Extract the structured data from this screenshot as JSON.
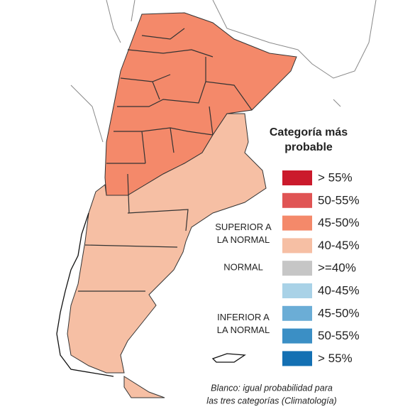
{
  "legend": {
    "title": [
      "Categoría más",
      "probable"
    ],
    "items": [
      {
        "label": "> 55%",
        "color": "#cb1a2c"
      },
      {
        "label": "50-55%",
        "color": "#e05454"
      },
      {
        "label": "45-50%",
        "color": "#f4896a"
      },
      {
        "label": "40-45%",
        "color": "#f6bfa4"
      },
      {
        "label": ">=40%",
        "color": "#c6c6c6"
      },
      {
        "label": "40-45%",
        "color": "#a9d2e7"
      },
      {
        "label": "45-50%",
        "color": "#6badd6"
      },
      {
        "label": "50-55%",
        "color": "#3b8fc5"
      },
      {
        "label": "> 55%",
        "color": "#1470b3"
      }
    ],
    "groups": [
      {
        "lines": [
          "SUPERIOR A",
          "LA NORMAL"
        ]
      },
      {
        "lines": [
          "NORMAL"
        ]
      },
      {
        "lines": [
          "INFERIOR A",
          "LA NORMAL"
        ]
      }
    ]
  },
  "footnote": [
    "Blanco: igual probabilidad para",
    "las tres categorías (Climatología)"
  ]
}
